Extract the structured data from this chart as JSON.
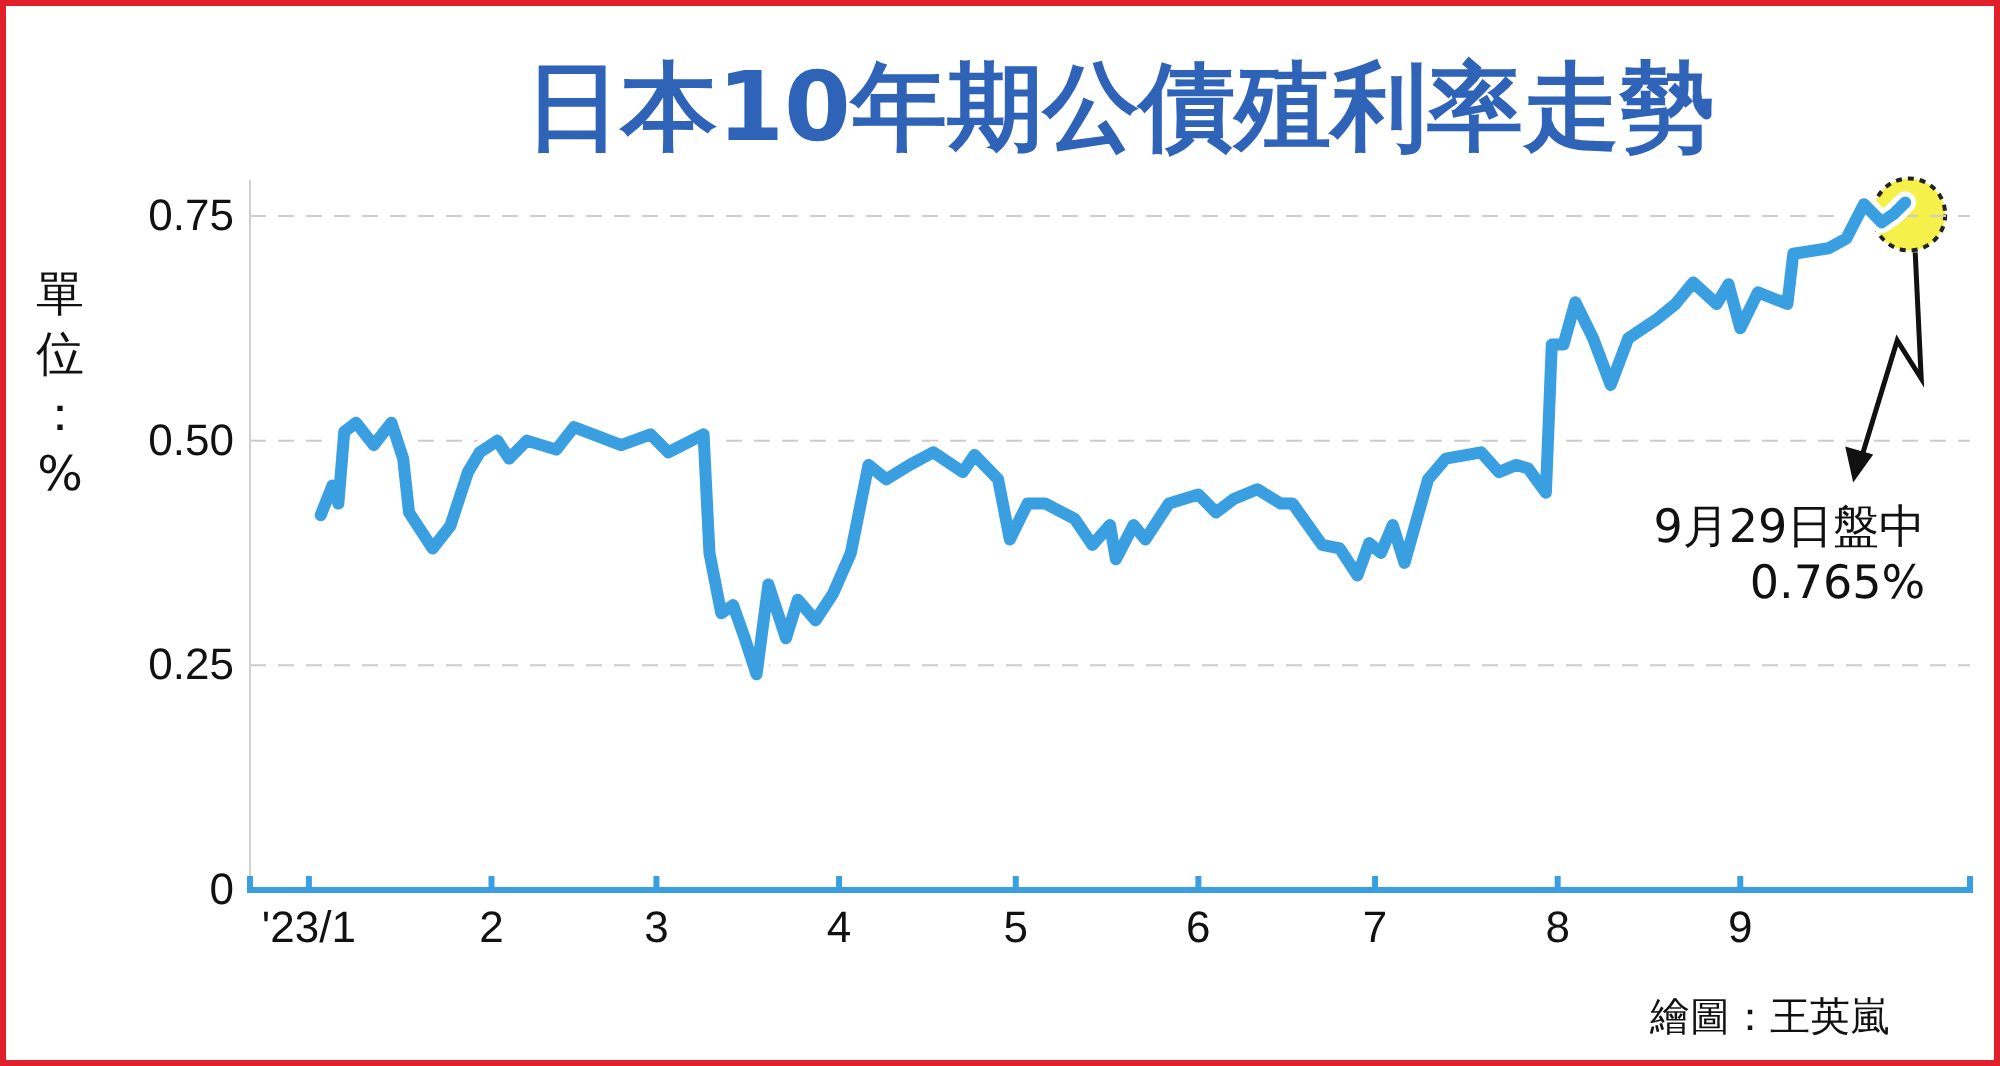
{
  "chart_data": {
    "type": "line",
    "title": "日本10年期公債殖利率走勢",
    "ylabel": "單位：%",
    "x": [
      "2023-01-03",
      "2023-01-05",
      "2023-01-06",
      "2023-01-07",
      "2023-01-09",
      "2023-01-12",
      "2023-01-15",
      "2023-01-17",
      "2023-01-18",
      "2023-01-22",
      "2023-01-25",
      "2023-01-28",
      "2023-01-30",
      "2023-02-02",
      "2023-02-04",
      "2023-02-07",
      "2023-02-12",
      "2023-02-15",
      "2023-02-23",
      "2023-02-28",
      "2023-03-03",
      "2023-03-09",
      "2023-03-10",
      "2023-03-12",
      "2023-03-14",
      "2023-03-16",
      "2023-03-18",
      "2023-03-20",
      "2023-03-23",
      "2023-03-25",
      "2023-03-28",
      "2023-03-31",
      "2023-04-03",
      "2023-04-06",
      "2023-04-09",
      "2023-04-13",
      "2023-04-17",
      "2023-04-22",
      "2023-04-24",
      "2023-04-28",
      "2023-04-30",
      "2023-05-03",
      "2023-05-06",
      "2023-05-11",
      "2023-05-14",
      "2023-05-17",
      "2023-05-18",
      "2023-05-21",
      "2023-05-23",
      "2023-05-27",
      "2023-06-01",
      "2023-06-04",
      "2023-06-07",
      "2023-06-11",
      "2023-06-15",
      "2023-06-17",
      "2023-06-22",
      "2023-06-25",
      "2023-06-28",
      "2023-06-30",
      "2023-07-02",
      "2023-07-04",
      "2023-07-06",
      "2023-07-10",
      "2023-07-13",
      "2023-07-19",
      "2023-07-22",
      "2023-07-25",
      "2023-07-27",
      "2023-07-30",
      "2023-07-31",
      "2023-08-02",
      "2023-08-04",
      "2023-08-07",
      "2023-08-10",
      "2023-08-13",
      "2023-08-18",
      "2023-08-21",
      "2023-08-24",
      "2023-08-28",
      "2023-08-30",
      "2023-09-01",
      "2023-09-04",
      "2023-09-09",
      "2023-09-10",
      "2023-09-16",
      "2023-09-19",
      "2023-09-22",
      "2023-09-25",
      "2023-09-27",
      "2023-09-29"
    ],
    "series": [
      {
        "color": "#3a9fe0",
        "values": [
          0.417,
          0.45,
          0.43,
          0.51,
          0.52,
          0.495,
          0.52,
          0.48,
          0.42,
          0.38,
          0.405,
          0.465,
          0.487,
          0.5,
          0.48,
          0.5,
          0.49,
          0.515,
          0.495,
          0.507,
          0.487,
          0.507,
          0.375,
          0.308,
          0.317,
          0.28,
          0.24,
          0.34,
          0.28,
          0.323,
          0.3,
          0.33,
          0.375,
          0.473,
          0.457,
          0.473,
          0.487,
          0.465,
          0.484,
          0.457,
          0.39,
          0.43,
          0.43,
          0.413,
          0.384,
          0.406,
          0.368,
          0.406,
          0.39,
          0.43,
          0.44,
          0.42,
          0.435,
          0.446,
          0.43,
          0.43,
          0.384,
          0.38,
          0.35,
          0.386,
          0.375,
          0.406,
          0.364,
          0.457,
          0.48,
          0.487,
          0.465,
          0.473,
          0.469,
          0.442,
          0.607,
          0.607,
          0.654,
          0.614,
          0.562,
          0.614,
          0.636,
          0.652,
          0.676,
          0.652,
          0.674,
          0.625,
          0.665,
          0.652,
          0.708,
          0.714,
          0.725,
          0.763,
          0.743,
          0.752,
          0.765
        ]
      }
    ],
    "xlim": [
      "2022-12-22",
      "2023-10-10"
    ],
    "xticks": [
      {
        "value": "2023-01-01",
        "label": "'23/1"
      },
      {
        "value": "2023-02-01",
        "label": "2"
      },
      {
        "value": "2023-03-01",
        "label": "3"
      },
      {
        "value": "2023-04-01",
        "label": "4"
      },
      {
        "value": "2023-05-01",
        "label": "5"
      },
      {
        "value": "2023-06-01",
        "label": "6"
      },
      {
        "value": "2023-07-01",
        "label": "7"
      },
      {
        "value": "2023-08-01",
        "label": "8"
      },
      {
        "value": "2023-09-01",
        "label": "9"
      }
    ],
    "ylim": [
      0,
      0.79
    ],
    "yticks": [
      0,
      0.25,
      {
        "value": 0.5,
        "label": "0.50"
      },
      0.75
    ],
    "grid": "y",
    "marker": "none",
    "line_style": "solid",
    "annotations": [
      "9月29日盤中\n0.765%",
      "繪圖：王英嵐"
    ]
  }
}
